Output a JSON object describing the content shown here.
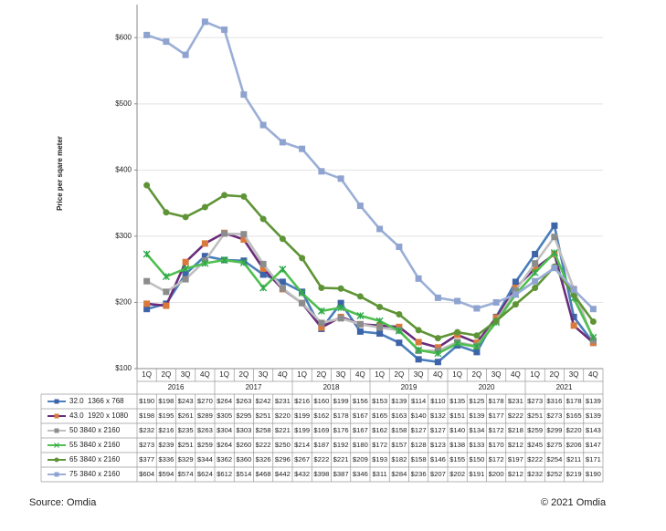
{
  "chart_data": {
    "type": "line",
    "y_label": "Price per sqare meter",
    "categories": [
      "1Q",
      "2Q",
      "3Q",
      "4Q",
      "1Q",
      "2Q",
      "3Q",
      "4Q",
      "1Q",
      "2Q",
      "3Q",
      "4Q",
      "1Q",
      "2Q",
      "3Q",
      "4Q",
      "1Q",
      "2Q",
      "3Q",
      "4Q",
      "1Q",
      "2Q",
      "3Q",
      "4Q"
    ],
    "category_groups": [
      "2016",
      "2017",
      "2018",
      "2019",
      "2020",
      "2021"
    ],
    "ylim": [
      100,
      650
    ],
    "yticks": [
      {
        "value": 100,
        "label": "$100"
      },
      {
        "value": 200,
        "label": "$200"
      },
      {
        "value": 300,
        "label": "$300"
      },
      {
        "value": 400,
        "label": "$400"
      },
      {
        "value": 500,
        "label": "$500"
      },
      {
        "value": 600,
        "label": "$600"
      }
    ],
    "grid": true,
    "series": [
      {
        "name": "32.0  1366 x 768",
        "color": "#4a7ebb",
        "marker_color": "#3d63a8",
        "marker": "square",
        "values": [
          190,
          198,
          243,
          270,
          264,
          263,
          242,
          231,
          216,
          160,
          199,
          156,
          153,
          139,
          114,
          110,
          135,
          125,
          178,
          231,
          273,
          316,
          178,
          139
        ],
        "value_labels": [
          "$190",
          "$198",
          "$243",
          "$270",
          "$264",
          "$263",
          "$242",
          "$231",
          "$216",
          "$160",
          "$199",
          "$156",
          "$153",
          "$139",
          "$114",
          "$110",
          "$135",
          "$125",
          "$178",
          "$231",
          "$273",
          "$316",
          "$178",
          "$139"
        ]
      },
      {
        "name": "43.0  1920 x 1080",
        "color": "#6a2c7a",
        "marker_color": "#d9793c",
        "marker": "square",
        "values": [
          198,
          195,
          261,
          289,
          305,
          295,
          251,
          220,
          199,
          162,
          178,
          167,
          165,
          163,
          140,
          132,
          151,
          139,
          177,
          222,
          251,
          273,
          165,
          139
        ],
        "value_labels": [
          "$198",
          "$195",
          "$261",
          "$289",
          "$305",
          "$295",
          "$251",
          "$220",
          "$199",
          "$162",
          "$178",
          "$167",
          "$165",
          "$163",
          "$140",
          "$132",
          "$151",
          "$139",
          "$177",
          "$222",
          "$251",
          "$273",
          "$165",
          "$139"
        ]
      },
      {
        "name": "50 3840 x 2160",
        "color": "#bfbfbf",
        "marker_color": "#8c8c8c",
        "marker": "square",
        "values": [
          232,
          216,
          235,
          263,
          304,
          303,
          258,
          221,
          199,
          169,
          176,
          167,
          162,
          158,
          127,
          127,
          140,
          134,
          172,
          218,
          259,
          299,
          220,
          143
        ],
        "value_labels": [
          "$232",
          "$216",
          "$235",
          "$263",
          "$304",
          "$303",
          "$258",
          "$221",
          "$199",
          "$169",
          "$176",
          "$167",
          "$162",
          "$158",
          "$127",
          "$127",
          "$140",
          "$134",
          "$172",
          "$218",
          "$259",
          "$299",
          "$220",
          "$143"
        ]
      },
      {
        "name": "55 3840 x 2160",
        "color": "#4fbf4f",
        "marker_color": "#2fa84a",
        "marker": "x",
        "values": [
          273,
          239,
          251,
          259,
          264,
          260,
          222,
          250,
          214,
          187,
          192,
          180,
          172,
          157,
          128,
          123,
          138,
          133,
          170,
          212,
          245,
          275,
          206,
          147
        ],
        "value_labels": [
          "$273",
          "$239",
          "$251",
          "$259",
          "$264",
          "$260",
          "$222",
          "$250",
          "$214",
          "$187",
          "$192",
          "$180",
          "$172",
          "$157",
          "$128",
          "$123",
          "$138",
          "$133",
          "$170",
          "$212",
          "$245",
          "$275",
          "$206",
          "$147"
        ]
      },
      {
        "name": "65 3840 x 2160",
        "color": "#5e9436",
        "marker_color": "#5e9436",
        "marker": "circle",
        "values": [
          377,
          336,
          329,
          344,
          362,
          360,
          326,
          296,
          267,
          222,
          221,
          209,
          193,
          182,
          158,
          146,
          155,
          150,
          172,
          197,
          222,
          254,
          211,
          171
        ],
        "value_labels": [
          "$377",
          "$336",
          "$329",
          "$344",
          "$362",
          "$360",
          "$326",
          "$296",
          "$267",
          "$222",
          "$221",
          "$209",
          "$193",
          "$182",
          "$158",
          "$146",
          "$155",
          "$150",
          "$172",
          "$197",
          "$222",
          "$254",
          "$211",
          "$171"
        ]
      },
      {
        "name": "75 3840 x 2160",
        "color": "#9aaed6",
        "marker_color": "#8ea3d0",
        "marker": "square",
        "values": [
          604,
          594,
          574,
          624,
          612,
          514,
          468,
          442,
          432,
          398,
          387,
          346,
          311,
          284,
          236,
          207,
          202,
          191,
          200,
          212,
          232,
          252,
          219,
          190
        ],
        "value_labels": [
          "$604",
          "$594",
          "$574",
          "$624",
          "$612",
          "$514",
          "$468",
          "$442",
          "$432",
          "$398",
          "$387",
          "$346",
          "$311",
          "$284",
          "$236",
          "$207",
          "$202",
          "$191",
          "$200",
          "$212",
          "$232",
          "$252",
          "$219",
          "$190"
        ]
      }
    ],
    "source": "Source: Omdia",
    "copyright": "© 2021 Omdia"
  }
}
